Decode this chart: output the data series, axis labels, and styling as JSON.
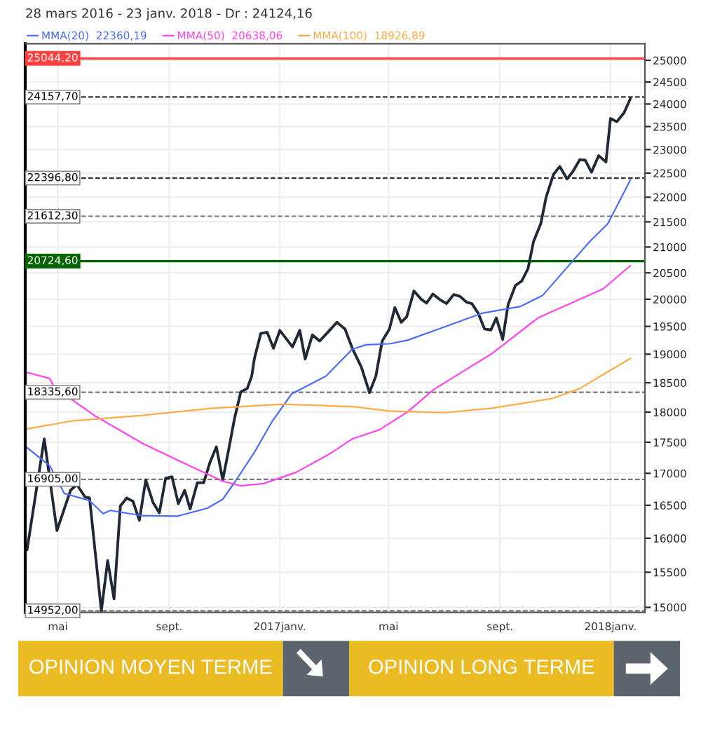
{
  "chart_data": {
    "type": "line",
    "title": "28 mars 2016 - 23 janv. 2018 - Dr : 24124,16",
    "log": true,
    "grid": true,
    "legend": "top left",
    "xlim": [
      "2016-03-26",
      "2018-02-08"
    ],
    "xticks": [
      {
        "value": "2016-05-01",
        "label": "mai"
      },
      {
        "value": "2016-09-01",
        "label": "sept."
      },
      {
        "value": "2017-01-01",
        "label": "2017janv."
      },
      {
        "value": "2017-05-01",
        "label": "mai"
      },
      {
        "value": "2017-09-01",
        "label": "sept."
      },
      {
        "value": "2018-01-01",
        "label": "2018janv."
      }
    ],
    "ylim": [
      14930,
      25390
    ],
    "yticks": [
      15000,
      15500,
      16000,
      16500,
      17000,
      17500,
      18000,
      18500,
      19000,
      19500,
      20000,
      20500,
      21000,
      21500,
      22000,
      22500,
      23000,
      23500,
      24000,
      24500,
      25000
    ],
    "series": [
      {
        "color": "#1f2a36",
        "x": [
          "2016-03-28",
          "2016-04-16",
          "2016-04-30",
          "2016-05-15",
          "2016-05-22",
          "2016-05-31",
          "2016-06-05",
          "2016-06-18",
          "2016-06-25",
          "2016-07-02",
          "2016-07-09",
          "2016-07-16",
          "2016-07-23",
          "2016-07-30",
          "2016-08-06",
          "2016-08-14",
          "2016-08-21",
          "2016-08-28",
          "2016-09-04",
          "2016-09-11",
          "2016-09-18",
          "2016-09-24",
          "2016-10-02",
          "2016-10-09",
          "2016-10-16",
          "2016-10-23",
          "2016-10-30",
          "2016-11-05",
          "2016-11-12",
          "2016-11-19",
          "2016-11-26",
          "2016-12-01",
          "2016-12-04",
          "2016-12-11",
          "2016-12-18",
          "2016-12-25",
          "2017-01-01",
          "2017-01-15",
          "2017-01-23",
          "2017-01-29",
          "2017-02-06",
          "2017-02-14",
          "2017-02-24",
          "2017-03-05",
          "2017-03-14",
          "2017-03-22",
          "2017-04-01",
          "2017-04-10",
          "2017-04-17",
          "2017-04-24",
          "2017-05-02",
          "2017-05-08",
          "2017-05-15",
          "2017-05-21",
          "2017-05-29",
          "2017-06-06",
          "2017-06-12",
          "2017-06-19",
          "2017-06-26",
          "2017-07-04",
          "2017-07-12",
          "2017-07-19",
          "2017-07-26",
          "2017-08-01",
          "2017-08-08",
          "2017-08-15",
          "2017-08-22",
          "2017-08-28",
          "2017-09-04",
          "2017-09-10",
          "2017-09-18",
          "2017-09-25",
          "2017-10-02",
          "2017-10-08",
          "2017-10-16",
          "2017-10-22",
          "2017-10-30",
          "2017-11-06",
          "2017-11-14",
          "2017-11-20",
          "2017-11-28",
          "2017-12-04",
          "2017-12-11",
          "2017-12-19",
          "2017-12-27",
          "2018-01-01",
          "2018-01-08",
          "2018-01-16",
          "2018-01-23"
        ],
        "values": [
          15828,
          17555,
          16115,
          16732,
          16823,
          16628,
          16612,
          14952,
          15670,
          15120,
          16490,
          16612,
          16560,
          16270,
          16895,
          16545,
          16385,
          16923,
          16945,
          16525,
          16732,
          16443,
          16852,
          16852,
          17180,
          17425,
          16895,
          17338,
          17893,
          18345,
          18400,
          18615,
          18928,
          19370,
          19395,
          19105,
          19427,
          19130,
          19427,
          18915,
          19347,
          19235,
          19410,
          19575,
          19452,
          19105,
          18773,
          18330,
          18615,
          19235,
          19452,
          19845,
          19575,
          19672,
          20155,
          20002,
          19930,
          20098,
          20002,
          19920,
          20090,
          20053,
          19947,
          19920,
          19740,
          19452,
          19435,
          19655,
          19265,
          19903,
          20257,
          20343,
          20582,
          21105,
          21460,
          22005,
          22470,
          22640,
          22378,
          22520,
          22783,
          22775,
          22520,
          22870,
          22735,
          23678,
          23607,
          23807,
          24124
        ]
      },
      {
        "name": "MMA(20)  22360,19",
        "color": "#4d6bff",
        "x": [
          "2016-03-28",
          "2016-04-22",
          "2016-05-08",
          "2016-06-05",
          "2016-06-20",
          "2016-06-28",
          "2016-08-02",
          "2016-09-10",
          "2016-10-13",
          "2016-10-30",
          "2016-11-13",
          "2016-12-04",
          "2016-12-24",
          "2017-01-14",
          "2017-02-21",
          "2017-03-22",
          "2017-04-06",
          "2017-05-02",
          "2017-05-22",
          "2017-07-02",
          "2017-08-12",
          "2017-09-23",
          "2017-10-18",
          "2017-11-13",
          "2017-12-09",
          "2017-12-29",
          "2018-01-23"
        ],
        "values": [
          17413,
          17122,
          16685,
          16572,
          16372,
          16420,
          16340,
          16333,
          16455,
          16593,
          16875,
          17338,
          17855,
          18308,
          18615,
          19088,
          19168,
          19185,
          19250,
          19493,
          19740,
          19863,
          20070,
          20582,
          21105,
          21460,
          22360
        ]
      },
      {
        "name": "MMA(50)  20638,06",
        "color": "#ff44ee",
        "x": [
          "2016-03-28",
          "2016-04-22",
          "2016-04-27",
          "2016-06-12",
          "2016-08-02",
          "2016-09-23",
          "2016-10-30",
          "2016-11-19",
          "2016-12-14",
          "2017-01-19",
          "2017-02-24",
          "2017-03-22",
          "2017-04-21",
          "2017-05-22",
          "2017-06-20",
          "2017-08-23",
          "2017-10-13",
          "2017-12-24",
          "2018-01-23"
        ],
        "values": [
          18680,
          18575,
          18422,
          17928,
          17485,
          17122,
          16875,
          16802,
          16838,
          17015,
          17302,
          17555,
          17705,
          18003,
          18385,
          19010,
          19655,
          20197,
          20638
        ]
      },
      {
        "name": "MMA(100)  18926,89",
        "color": "#ffaa44",
        "x": [
          "2016-03-28",
          "2016-05-18",
          "2016-08-02",
          "2016-10-19",
          "2017-01-04",
          "2017-03-22",
          "2017-05-02",
          "2017-07-02",
          "2017-08-23",
          "2017-10-29",
          "2017-11-28",
          "2018-01-23"
        ],
        "values": [
          17720,
          17855,
          17945,
          18065,
          18133,
          18093,
          18018,
          17990,
          18065,
          18230,
          18400,
          18926.89
        ]
      }
    ],
    "ref_lines": [
      {
        "axis": "y",
        "value": 25044.2,
        "label": "25044,20",
        "color": "#ff4040",
        "line_style": "solid"
      },
      {
        "axis": "y",
        "value": 24157.7,
        "label": "24157,70",
        "color": "#333333",
        "line_style": "dashed"
      },
      {
        "axis": "y",
        "value": 22396.8,
        "label": "22396,80",
        "color": "#333333",
        "line_style": "dashed"
      },
      {
        "axis": "y",
        "value": 21612.3,
        "label": "21612,30",
        "color": "#777777",
        "line_style": "dashed"
      },
      {
        "axis": "y",
        "value": 20724.6,
        "label": "20724,60",
        "color": "#006400",
        "line_style": "solid"
      },
      {
        "axis": "y",
        "value": 18335.6,
        "label": "18335,60",
        "color": "#777777",
        "line_style": "dashed"
      },
      {
        "axis": "y",
        "value": 16905.0,
        "label": "16905,00",
        "color": "#777777",
        "line_style": "dashed"
      },
      {
        "axis": "y",
        "value": 14952.0,
        "label": "14952,00",
        "color": "#777777",
        "line_style": "dashed"
      }
    ],
    "annotations": [
      "OPINION MOYEN TERME",
      "OPINION LONG TERME"
    ]
  }
}
